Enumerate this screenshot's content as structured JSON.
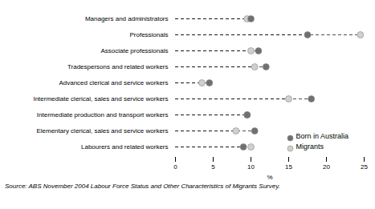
{
  "chart_data": {
    "type": "dot",
    "orientation": "horizontal",
    "categories": [
      "Managers and administrators",
      "Professionals",
      "Associate professionals",
      "Tradespersons and related workers",
      "Advanced clerical and service workers",
      "Intermediate clerical, sales and service workers",
      "Intermediate production and transport workers",
      "Elementary clerical, sales and service workers",
      "Labourers and related workers"
    ],
    "series": [
      {
        "name": "Born in Australia",
        "color": "#707070",
        "values": [
          10.0,
          17.5,
          11.0,
          12.0,
          4.5,
          18.0,
          9.5,
          10.5,
          9.0
        ]
      },
      {
        "name": "Migrants",
        "color": "#d0d0d0",
        "values": [
          9.5,
          24.5,
          10.0,
          10.5,
          3.5,
          15.0,
          9.5,
          8.0,
          10.0
        ]
      }
    ],
    "xlabel": "%",
    "xlim": [
      0,
      25
    ],
    "xticks": [
      0,
      5,
      10,
      15,
      20,
      25
    ],
    "legend": "lower right",
    "caption": "Source: ABS November 2004 Labour Force Status and Other Characteristics of Migrants Survey."
  }
}
